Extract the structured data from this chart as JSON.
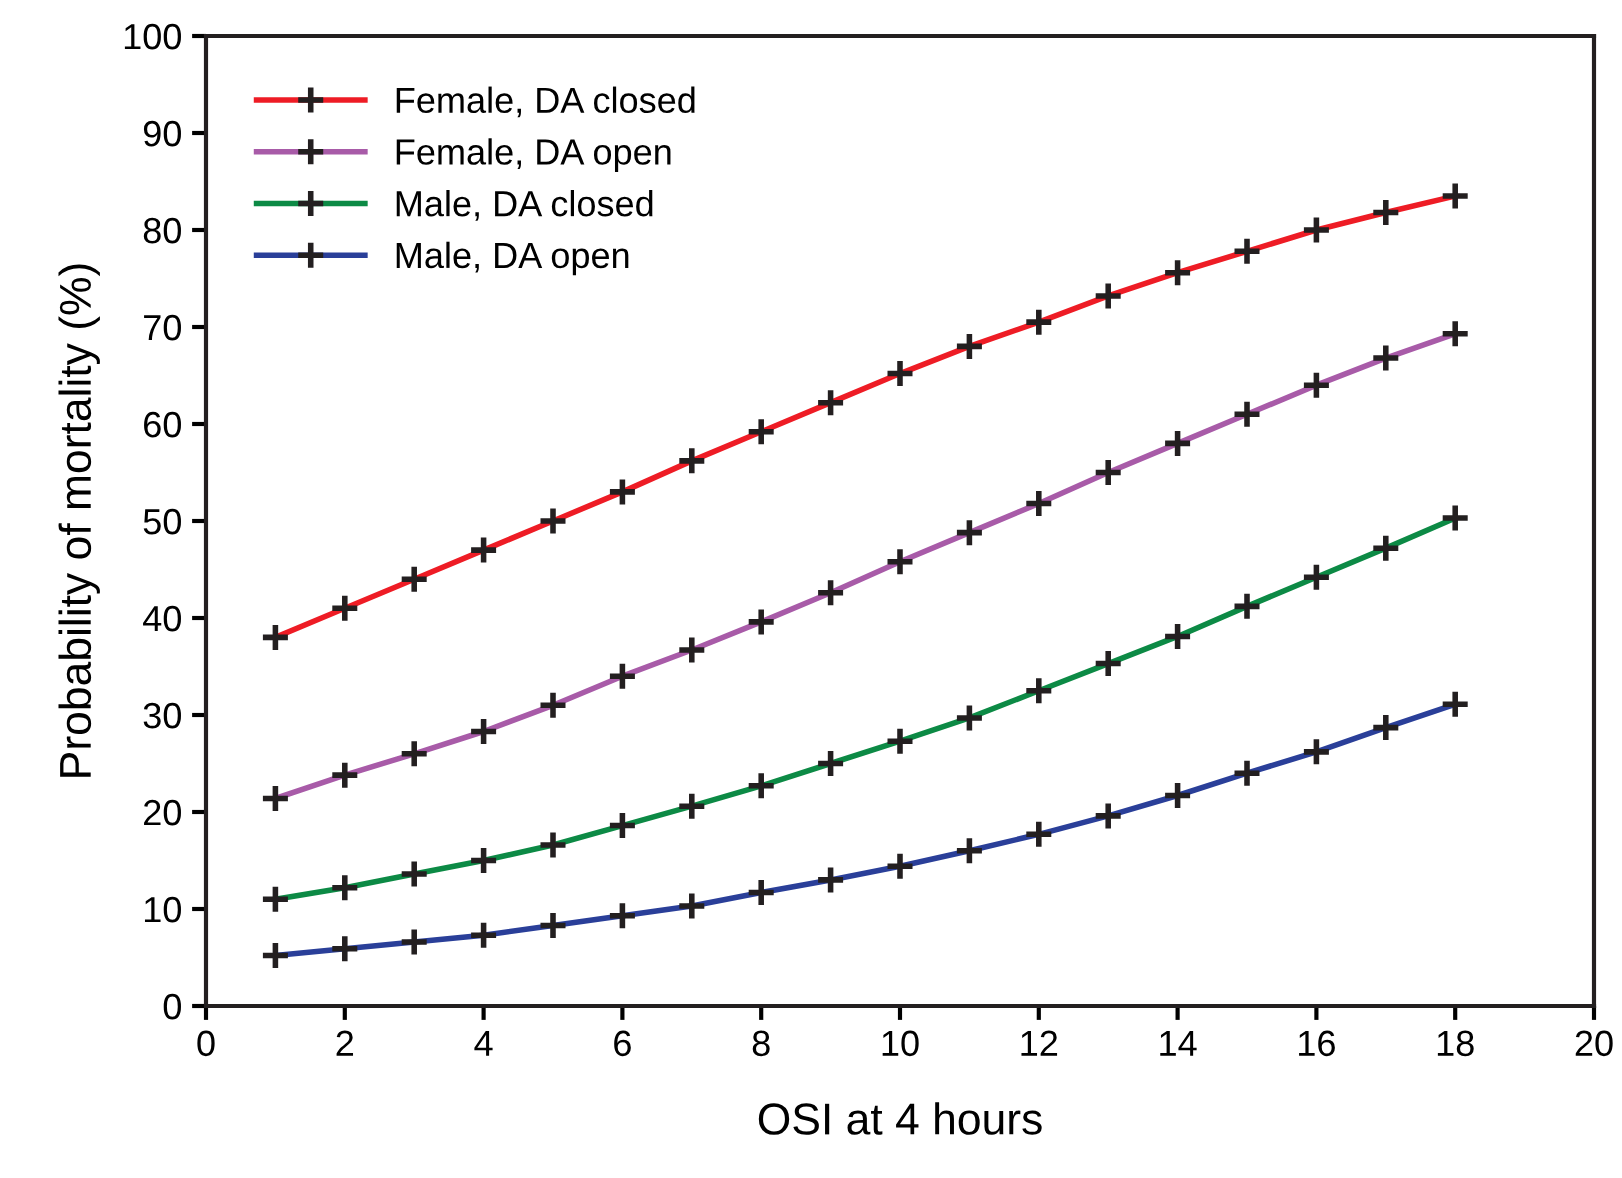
{
  "chart_data": {
    "type": "line",
    "xlabel": "OSI at 4 hours",
    "ylabel": "Probability of mortality (%)",
    "x": [
      1,
      2,
      3,
      4,
      5,
      6,
      7,
      8,
      9,
      10,
      11,
      12,
      13,
      14,
      15,
      16,
      17,
      18
    ],
    "series": [
      {
        "name": "Female, DA closed",
        "color": "#ee1c25",
        "values": [
          38,
          41,
          44,
          47,
          50,
          53,
          56.2,
          59.2,
          62.2,
          65.2,
          68,
          70.5,
          73.2,
          75.6,
          77.8,
          80,
          81.8,
          83.5
        ]
      },
      {
        "name": "Female, DA open",
        "color": "#a85ba8",
        "values": [
          21.4,
          23.8,
          26,
          28.3,
          31,
          34,
          36.7,
          39.6,
          42.6,
          45.8,
          48.8,
          51.8,
          55,
          58,
          61,
          64,
          66.8,
          69.3
        ]
      },
      {
        "name": "Male, DA closed",
        "color": "#0c8a45",
        "values": [
          11,
          12.2,
          13.6,
          15,
          16.6,
          18.6,
          20.6,
          22.7,
          25,
          27.3,
          29.7,
          32.5,
          35.3,
          38.1,
          41.2,
          44.2,
          47.2,
          50.3
        ]
      },
      {
        "name": "Male, DA open",
        "color": "#2a3f99",
        "values": [
          5.2,
          5.9,
          6.6,
          7.3,
          8.3,
          9.3,
          10.3,
          11.7,
          13,
          14.4,
          16,
          17.7,
          19.6,
          21.7,
          24,
          26.2,
          28.7,
          31.1
        ]
      }
    ],
    "xlim": [
      0,
      20
    ],
    "xticks": [
      0,
      2,
      4,
      6,
      8,
      10,
      12,
      14,
      16,
      18,
      20
    ],
    "ylim": [
      0,
      100
    ],
    "yticks": [
      0,
      10,
      20,
      30,
      40,
      50,
      60,
      70,
      80,
      90,
      100
    ],
    "grid": false,
    "legend": "top left",
    "marker": "cross",
    "line_style": "solid"
  }
}
